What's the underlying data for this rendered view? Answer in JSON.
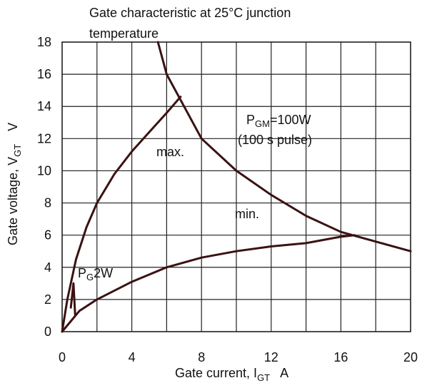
{
  "chart_data": {
    "type": "line",
    "title": [
      "Gate characteristic at 25°C junction",
      "temperature"
    ],
    "xlabel": "Gate current, IGT A",
    "ylabel": "Gate voltage, VGT V",
    "xlim": [
      0,
      20
    ],
    "ylim": [
      0,
      18
    ],
    "x_ticks": [
      "0",
      "4",
      "8",
      "12",
      "16",
      "20"
    ],
    "y_ticks": [
      "0",
      "2",
      "4",
      "6",
      "8",
      "10",
      "12",
      "14",
      "16",
      "18"
    ],
    "grid": true,
    "series": [
      {
        "name": "max.",
        "x": [
          0,
          0.3,
          0.8,
          1.4,
          2,
          3,
          4,
          5,
          6,
          6.8
        ],
        "y": [
          0,
          2,
          4.5,
          6.5,
          8,
          9.8,
          11.2,
          12.4,
          13.6,
          14.6
        ]
      },
      {
        "name": "min.",
        "x": [
          0,
          1,
          2,
          4,
          6,
          8,
          10,
          12,
          14,
          16,
          16.8
        ],
        "y": [
          0,
          1.3,
          2,
          3.1,
          4,
          4.6,
          5,
          5.3,
          5.5,
          5.9,
          6
        ]
      },
      {
        "name": "PGM=100W (100 s pulse)",
        "x": [
          5.5,
          6,
          7,
          8,
          10,
          12,
          14,
          16,
          20
        ],
        "y": [
          18,
          16,
          14,
          12,
          10,
          8.5,
          7.2,
          6.2,
          5
        ]
      },
      {
        "name": "PG2W",
        "x": [
          0.5,
          0.65,
          0.75
        ],
        "y": [
          1.5,
          3,
          1
        ]
      }
    ],
    "annotations": [
      {
        "text": "max."
      },
      {
        "text": "min."
      },
      {
        "text": "PGM=100W"
      },
      {
        "text": "(100 s pulse)"
      },
      {
        "text": "PG2W"
      }
    ]
  }
}
